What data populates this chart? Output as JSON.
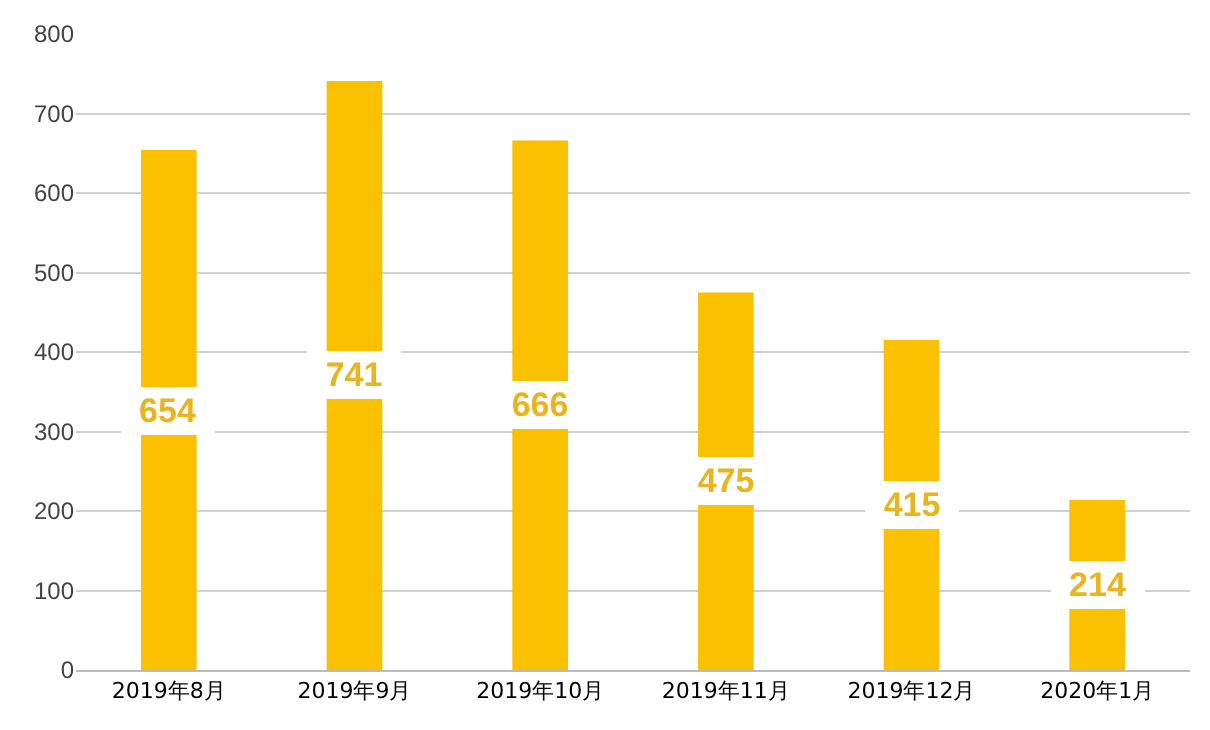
{
  "chart_data": {
    "type": "bar",
    "categories": [
      "2019年8月",
      "2019年9月",
      "2019年10月",
      "2019年11月",
      "2019年12月",
      "2020年1月"
    ],
    "values": [
      654,
      741,
      666,
      475,
      415,
      214
    ],
    "color": "#fbc000",
    "ylim": [
      0,
      800
    ],
    "yticks": [
      0,
      100,
      200,
      300,
      400,
      500,
      600,
      700,
      800
    ],
    "grid": "y",
    "data_labels": true
  }
}
